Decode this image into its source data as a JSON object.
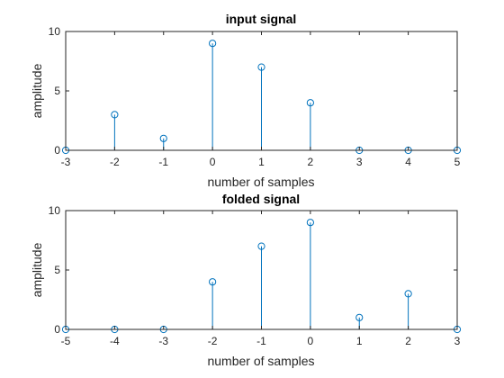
{
  "figure": {
    "background": "#ffffff",
    "axes_color": "#262626",
    "stem_color": "#0072bd"
  },
  "chart_data": [
    {
      "type": "stem",
      "title": "input signal",
      "xlabel": "number of samples",
      "ylabel": "amplitude",
      "x": [
        -3,
        -2,
        -1,
        0,
        1,
        2,
        3,
        4,
        5
      ],
      "y": [
        0,
        3,
        1,
        9,
        7,
        4,
        0,
        0,
        0
      ],
      "xlim": [
        -3,
        5
      ],
      "ylim": [
        0,
        10
      ],
      "xticks": [
        "-3",
        "-2",
        "-1",
        "0",
        "1",
        "2",
        "3",
        "4",
        "5"
      ],
      "yticks": [
        "0",
        "5",
        "10"
      ],
      "grid": false,
      "box": true,
      "marker": "circle-open"
    },
    {
      "type": "stem",
      "title": "folded signal",
      "xlabel": "number of samples",
      "ylabel": "amplitude",
      "x": [
        -5,
        -4,
        -3,
        -2,
        -1,
        0,
        1,
        2,
        3
      ],
      "y": [
        0,
        0,
        0,
        4,
        7,
        9,
        1,
        3,
        0
      ],
      "xlim": [
        -5,
        3
      ],
      "ylim": [
        0,
        10
      ],
      "xticks": [
        "-5",
        "-4",
        "-3",
        "-2",
        "-1",
        "0",
        "1",
        "2",
        "3"
      ],
      "yticks": [
        "0",
        "5",
        "10"
      ],
      "grid": false,
      "box": true,
      "marker": "circle-open"
    }
  ]
}
